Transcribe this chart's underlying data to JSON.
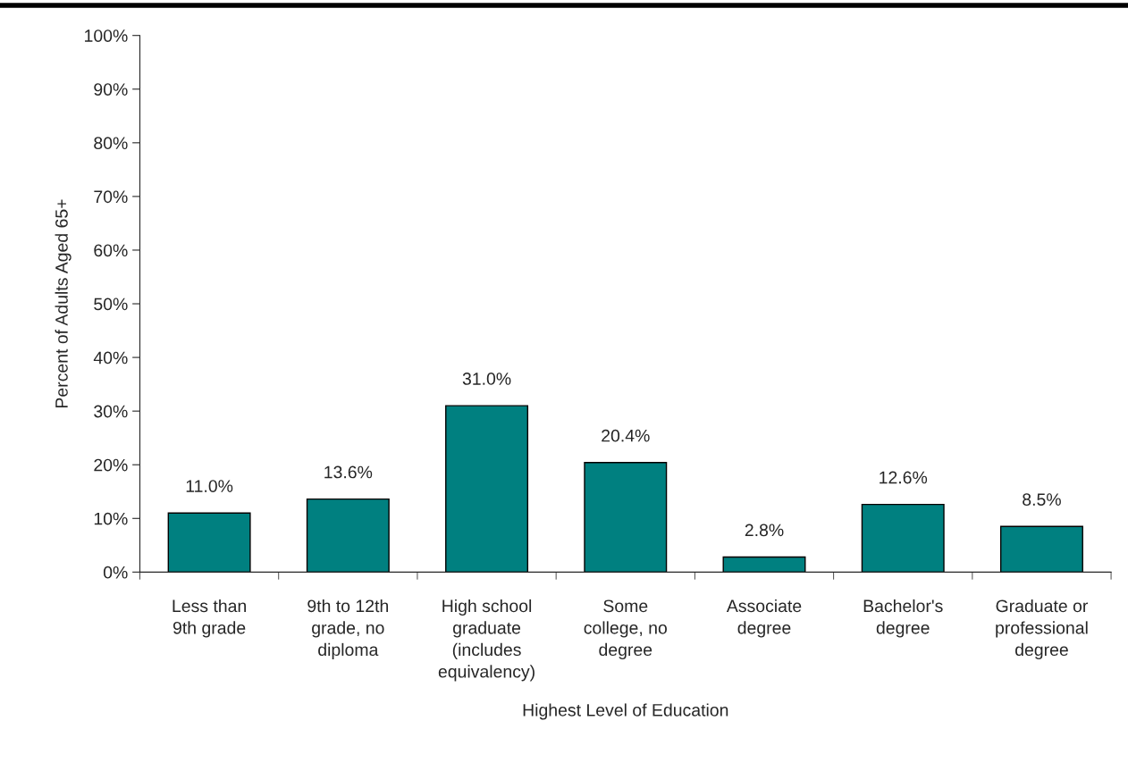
{
  "chart_data": {
    "type": "bar",
    "xlabel": "Highest Level of Education",
    "ylabel": "Percent of Adults Aged 65+",
    "categories": [
      "Less than\n9th grade",
      "9th to 12th\ngrade, no\ndiploma",
      "High school\ngraduate\n(includes\nequivalency)",
      "Some\ncollege, no\ndegree",
      "Associate\ndegree",
      "Bachelor's\ndegree",
      "Graduate or\nprofessional\ndegree"
    ],
    "values": [
      11.0,
      13.6,
      31.0,
      20.4,
      2.8,
      12.6,
      8.5
    ],
    "value_labels": [
      "11.0%",
      "13.6%",
      "31.0%",
      "20.4%",
      "2.8%",
      "12.6%",
      "8.5%"
    ],
    "color": "#008080",
    "ylim": [
      0,
      100
    ],
    "yticks": [
      {
        "value": 0,
        "label": "0%"
      },
      {
        "value": 10,
        "label": "10%"
      },
      {
        "value": 20,
        "label": "20%"
      },
      {
        "value": 30,
        "label": "30%"
      },
      {
        "value": 40,
        "label": "40%"
      },
      {
        "value": 50,
        "label": "50%"
      },
      {
        "value": 60,
        "label": "60%"
      },
      {
        "value": 70,
        "label": "70%"
      },
      {
        "value": 80,
        "label": "80%"
      },
      {
        "value": 90,
        "label": "90%"
      },
      {
        "value": 100,
        "label": "100%"
      }
    ],
    "grid": false,
    "legend": false
  }
}
